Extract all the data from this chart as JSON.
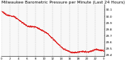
{
  "title": "Milwaukee Barometric Pressure per Minute (Last 24 Hours)",
  "line_color": "#dd0000",
  "bg_color": "#ffffff",
  "plot_bg_color": "#f8f8f8",
  "grid_color": "#bbbbbb",
  "ylim": [
    29.38,
    30.18
  ],
  "yticks": [
    29.4,
    29.5,
    29.6,
    29.7,
    29.8,
    29.9,
    30.0,
    30.1
  ],
  "ytick_labels": [
    "29.4",
    "29.5",
    "29.6",
    "29.7",
    "29.8",
    "29.9",
    "30.0",
    "30.1"
  ],
  "num_points": 1440,
  "title_fontsize": 4.2,
  "tick_fontsize": 3.2,
  "marker_size": 0.7,
  "num_vgrid_lines": 12
}
